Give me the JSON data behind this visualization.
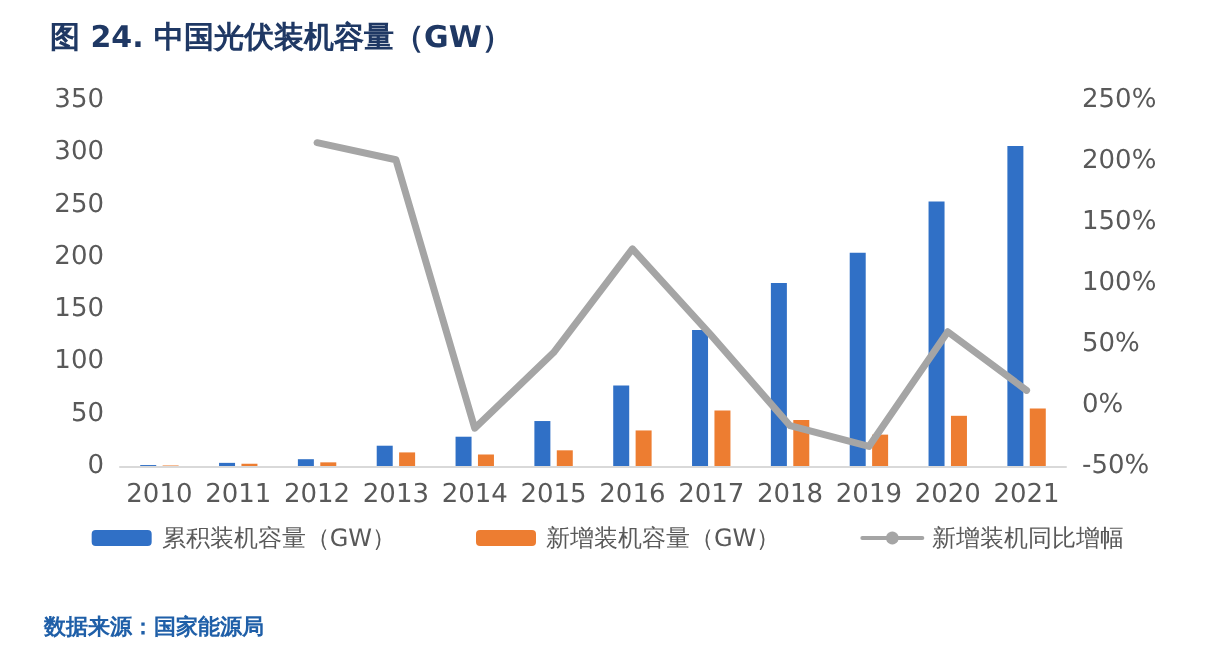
{
  "chart_data": {
    "type": "bar",
    "title": "图 24. 中国光伏装机容量（GW）",
    "categories": [
      "2010",
      "2011",
      "2012",
      "2013",
      "2014",
      "2015",
      "2016",
      "2017",
      "2018",
      "2019",
      "2020",
      "2021"
    ],
    "series": [
      {
        "name": "累积装机容量（GW）",
        "color": "#3070c6",
        "values": [
          0.9,
          3,
          6.5,
          19.4,
          28,
          43,
          77,
          130,
          175,
          204,
          253,
          306
        ]
      },
      {
        "name": "新增装机容量（GW）",
        "color": "#ed7d31",
        "values": [
          0.5,
          2.1,
          3.5,
          13,
          11,
          15,
          34,
          53,
          44,
          30,
          48,
          55
        ]
      },
      {
        "name": "新增装机同比增幅",
        "type": "line",
        "axis": "y2",
        "color": "#a5a5a5",
        "values": [
          null,
          null,
          215,
          201,
          -19,
          43,
          128,
          57,
          -17,
          -34,
          60,
          12
        ]
      }
    ],
    "ylim": [
      0,
      350
    ],
    "yticks": [
      0,
      50,
      100,
      150,
      200,
      250,
      300,
      350
    ],
    "y2lim": [
      -50,
      250
    ],
    "y2ticks": [
      {
        "value": -50,
        "label": "-50%"
      },
      {
        "value": 0,
        "label": "0%"
      },
      {
        "value": 50,
        "label": "50%"
      },
      {
        "value": 100,
        "label": "100%"
      },
      {
        "value": 150,
        "label": "150%"
      },
      {
        "value": 200,
        "label": "200%"
      },
      {
        "value": 250,
        "label": "250%"
      }
    ],
    "grid": false,
    "legend": "bottom",
    "marker": "none",
    "line_style": "solid",
    "annotations": [
      "数据来源：国家能源局"
    ]
  }
}
